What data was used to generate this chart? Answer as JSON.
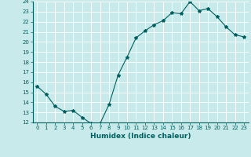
{
  "x": [
    0,
    1,
    2,
    3,
    4,
    5,
    6,
    7,
    8,
    9,
    10,
    11,
    12,
    13,
    14,
    15,
    16,
    17,
    18,
    19,
    20,
    21,
    22,
    23
  ],
  "y": [
    15.6,
    14.8,
    13.6,
    13.1,
    13.2,
    12.5,
    11.9,
    11.9,
    13.8,
    16.7,
    18.5,
    20.4,
    21.1,
    21.7,
    22.1,
    22.9,
    22.8,
    24.0,
    23.1,
    23.3,
    22.5,
    21.5,
    20.7,
    20.5
  ],
  "line_color": "#006060",
  "marker": "*",
  "marker_size": 3,
  "bg_color": "#c8eaea",
  "grid_color": "#ffffff",
  "xlabel": "Humidex (Indice chaleur)",
  "ylim": [
    12,
    24
  ],
  "xlim": [
    -0.5,
    23.5
  ],
  "yticks": [
    12,
    13,
    14,
    15,
    16,
    17,
    18,
    19,
    20,
    21,
    22,
    23,
    24
  ],
  "xticks": [
    0,
    1,
    2,
    3,
    4,
    5,
    6,
    7,
    8,
    9,
    10,
    11,
    12,
    13,
    14,
    15,
    16,
    17,
    18,
    19,
    20,
    21,
    22,
    23
  ],
  "xlabel_fontsize": 6.5,
  "tick_fontsize": 5.0
}
